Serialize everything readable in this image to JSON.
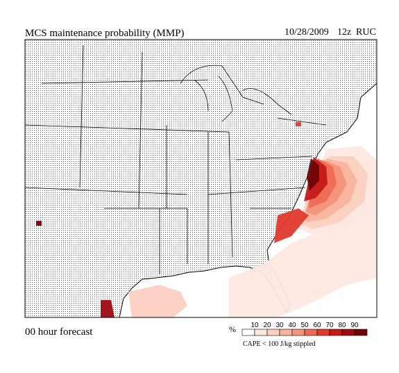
{
  "header": {
    "title": "MCS maintenance probability (MMP)",
    "date": "10/28/2009",
    "cycle": "12z",
    "model": "RUC"
  },
  "footer": {
    "forecast": "00 hour forecast",
    "note": "CAPE < 100 J/kg stippled"
  },
  "colorbar": {
    "unit": "%",
    "ticks": [
      10,
      20,
      30,
      40,
      50,
      60,
      70,
      80,
      90
    ],
    "colors": [
      "#ffffff",
      "#fde8e0",
      "#fbd0c0",
      "#f8b49e",
      "#f4947c",
      "#ee6a55",
      "#e03a2e",
      "#c41a1a",
      "#9e0c12",
      "#6e0508"
    ]
  }
}
